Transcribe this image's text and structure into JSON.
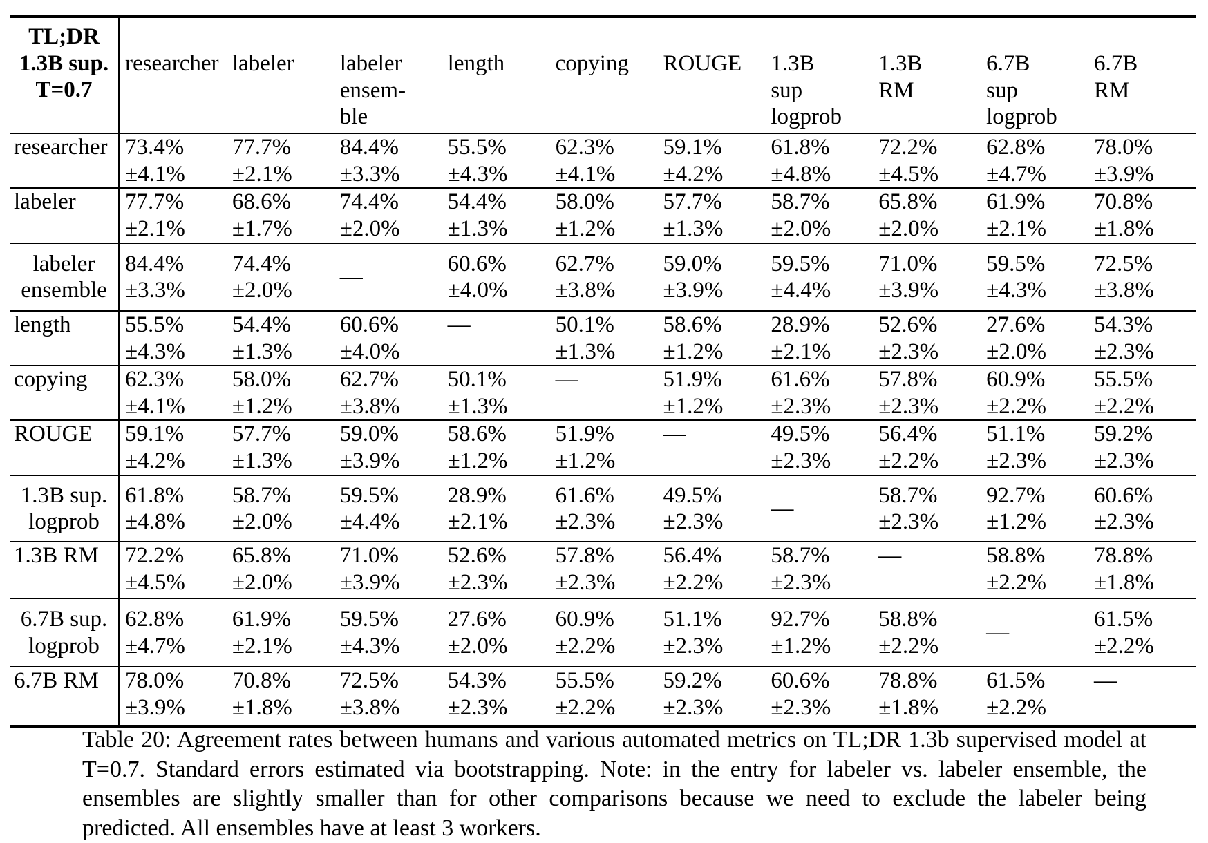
{
  "table": {
    "corner": [
      "TL;DR",
      "1.3B sup.",
      "T=0.7"
    ],
    "columns": [
      [
        "researcher"
      ],
      [
        "labeler"
      ],
      [
        "labeler",
        "ensem-",
        "ble"
      ],
      [
        "length"
      ],
      [
        "copying"
      ],
      [
        "ROUGE"
      ],
      [
        "1.3B",
        "sup",
        "logprob"
      ],
      [
        "1.3B",
        "RM"
      ],
      [
        "6.7B",
        "sup",
        "logprob"
      ],
      [
        "6.7B",
        "RM"
      ]
    ],
    "rows": [
      {
        "label": [
          "researcher"
        ],
        "cells": [
          [
            "73.4%",
            "±4.1%"
          ],
          [
            "77.7%",
            "±2.1%"
          ],
          [
            "84.4%",
            "±3.3%"
          ],
          [
            "55.5%",
            "±4.3%"
          ],
          [
            "62.3%",
            "±4.1%"
          ],
          [
            "59.1%",
            "±4.2%"
          ],
          [
            "61.8%",
            "±4.8%"
          ],
          [
            "72.2%",
            "±4.5%"
          ],
          [
            "62.8%",
            "±4.7%"
          ],
          [
            "78.0%",
            "±3.9%"
          ]
        ]
      },
      {
        "label": [
          "labeler"
        ],
        "cells": [
          [
            "77.7%",
            "±2.1%"
          ],
          [
            "68.6%",
            "±1.7%"
          ],
          [
            "74.4%",
            "±2.0%"
          ],
          [
            "54.4%",
            "±1.3%"
          ],
          [
            "58.0%",
            "±1.2%"
          ],
          [
            "57.7%",
            "±1.3%"
          ],
          [
            "58.7%",
            "±2.0%"
          ],
          [
            "65.8%",
            "±2.0%"
          ],
          [
            "61.9%",
            "±2.1%"
          ],
          [
            "70.8%",
            "±1.8%"
          ]
        ]
      },
      {
        "label": [
          "labeler",
          "ensemble"
        ],
        "cells": [
          [
            "84.4%",
            "±3.3%"
          ],
          [
            "74.4%",
            "±2.0%"
          ],
          [
            "—"
          ],
          [
            "60.6%",
            "±4.0%"
          ],
          [
            "62.7%",
            "±3.8%"
          ],
          [
            "59.0%",
            "±3.9%"
          ],
          [
            "59.5%",
            "±4.4%"
          ],
          [
            "71.0%",
            "±3.9%"
          ],
          [
            "59.5%",
            "±4.3%"
          ],
          [
            "72.5%",
            "±3.8%"
          ]
        ]
      },
      {
        "label": [
          "length"
        ],
        "cells": [
          [
            "55.5%",
            "±4.3%"
          ],
          [
            "54.4%",
            "±1.3%"
          ],
          [
            "60.6%",
            "±4.0%"
          ],
          [
            "—"
          ],
          [
            "50.1%",
            "±1.3%"
          ],
          [
            "58.6%",
            "±1.2%"
          ],
          [
            "28.9%",
            "±2.1%"
          ],
          [
            "52.6%",
            "±2.3%"
          ],
          [
            "27.6%",
            "±2.0%"
          ],
          [
            "54.3%",
            "±2.3%"
          ]
        ]
      },
      {
        "label": [
          "copying"
        ],
        "cells": [
          [
            "62.3%",
            "±4.1%"
          ],
          [
            "58.0%",
            "±1.2%"
          ],
          [
            "62.7%",
            "±3.8%"
          ],
          [
            "50.1%",
            "±1.3%"
          ],
          [
            "—"
          ],
          [
            "51.9%",
            "±1.2%"
          ],
          [
            "61.6%",
            "±2.3%"
          ],
          [
            "57.8%",
            "±2.3%"
          ],
          [
            "60.9%",
            "±2.2%"
          ],
          [
            "55.5%",
            "±2.2%"
          ]
        ]
      },
      {
        "label": [
          "ROUGE"
        ],
        "cells": [
          [
            "59.1%",
            "±4.2%"
          ],
          [
            "57.7%",
            "±1.3%"
          ],
          [
            "59.0%",
            "±3.9%"
          ],
          [
            "58.6%",
            "±1.2%"
          ],
          [
            "51.9%",
            "±1.2%"
          ],
          [
            "—"
          ],
          [
            "49.5%",
            "±2.3%"
          ],
          [
            "56.4%",
            "±2.2%"
          ],
          [
            "51.1%",
            "±2.3%"
          ],
          [
            "59.2%",
            "±2.3%"
          ]
        ]
      },
      {
        "label": [
          "1.3B sup.",
          "logprob"
        ],
        "cells": [
          [
            "61.8%",
            "±4.8%"
          ],
          [
            "58.7%",
            "±2.0%"
          ],
          [
            "59.5%",
            "±4.4%"
          ],
          [
            "28.9%",
            "±2.1%"
          ],
          [
            "61.6%",
            "±2.3%"
          ],
          [
            "49.5%",
            "±2.3%"
          ],
          [
            "—"
          ],
          [
            "58.7%",
            "±2.3%"
          ],
          [
            "92.7%",
            "±1.2%"
          ],
          [
            "60.6%",
            "±2.3%"
          ]
        ]
      },
      {
        "label": [
          "1.3B RM"
        ],
        "cells": [
          [
            "72.2%",
            "±4.5%"
          ],
          [
            "65.8%",
            "±2.0%"
          ],
          [
            "71.0%",
            "±3.9%"
          ],
          [
            "52.6%",
            "±2.3%"
          ],
          [
            "57.8%",
            "±2.3%"
          ],
          [
            "56.4%",
            "±2.2%"
          ],
          [
            "58.7%",
            "±2.3%"
          ],
          [
            "—"
          ],
          [
            "58.8%",
            "±2.2%"
          ],
          [
            "78.8%",
            "±1.8%"
          ]
        ]
      },
      {
        "label": [
          "6.7B sup.",
          "logprob"
        ],
        "cells": [
          [
            "62.8%",
            "±4.7%"
          ],
          [
            "61.9%",
            "±2.1%"
          ],
          [
            "59.5%",
            "±4.3%"
          ],
          [
            "27.6%",
            "±2.0%"
          ],
          [
            "60.9%",
            "±2.2%"
          ],
          [
            "51.1%",
            "±2.3%"
          ],
          [
            "92.7%",
            "±1.2%"
          ],
          [
            "58.8%",
            "±2.2%"
          ],
          [
            "—"
          ],
          [
            "61.5%",
            "±2.2%"
          ]
        ]
      },
      {
        "label": [
          "6.7B RM"
        ],
        "cells": [
          [
            "78.0%",
            "±3.9%"
          ],
          [
            "70.8%",
            "±1.8%"
          ],
          [
            "72.5%",
            "±3.8%"
          ],
          [
            "54.3%",
            "±2.3%"
          ],
          [
            "55.5%",
            "±2.2%"
          ],
          [
            "59.2%",
            "±2.3%"
          ],
          [
            "60.6%",
            "±2.3%"
          ],
          [
            "78.8%",
            "±1.8%"
          ],
          [
            "61.5%",
            "±2.2%"
          ],
          [
            "—"
          ]
        ]
      }
    ]
  },
  "caption": "Table 20: Agreement rates between humans and various automated metrics on TL;DR 1.3b supervised model at T=0.7. Standard errors estimated via bootstrapping. Note: in the entry for labeler vs. labeler ensemble, the ensembles are slightly smaller than for other comparisons because we need to exclude the labeler being predicted. All ensembles have at least 3 workers."
}
